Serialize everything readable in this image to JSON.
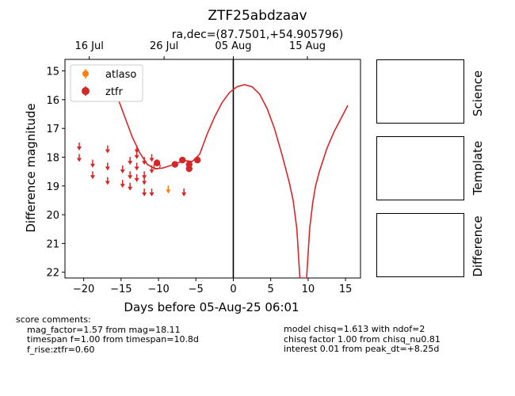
{
  "chart_data": {
    "type": "scatter",
    "title": "ZTF25abdzaav",
    "subtitle": "ra,dec=(87.7501,+54.905796)",
    "xlabel": "Days before 05-Aug-25 06:01",
    "ylabel": "Difference magnitude",
    "xlim": [
      -22.5,
      17
    ],
    "ylim": [
      22.2,
      14.6
    ],
    "y_inverted": true,
    "xticks": [
      -20,
      -15,
      -10,
      -5,
      0,
      5,
      10,
      15
    ],
    "yticks": [
      15,
      16,
      17,
      18,
      19,
      20,
      21,
      22
    ],
    "top_axis_ticks": [
      {
        "x": -19.25,
        "label": "16 Jul"
      },
      {
        "x": -9.25,
        "label": "26 Jul"
      },
      {
        "x": 0.0,
        "label": "05 Aug"
      },
      {
        "x": 9.9,
        "label": "15 Aug"
      }
    ],
    "vline_x": 0,
    "legend": {
      "location": "upper-left",
      "entries": [
        "atlaso",
        "ztfr"
      ]
    },
    "series": [
      {
        "name": "ztfr",
        "color": "#d62728",
        "detections": [
          {
            "x": -10.2,
            "y": 18.2,
            "err": 0.12
          },
          {
            "x": -7.8,
            "y": 18.25,
            "err": 0.1
          },
          {
            "x": -6.8,
            "y": 18.1,
            "err": 0.1
          },
          {
            "x": -5.9,
            "y": 18.4,
            "err": 0.12
          },
          {
            "x": -5.9,
            "y": 18.25,
            "err": 0.1
          },
          {
            "x": -4.8,
            "y": 18.1,
            "err": 0.08
          }
        ],
        "open_detection": {
          "x": -10.2,
          "y": 18.3
        },
        "upper_limits": [
          {
            "x": -20.6,
            "y": 17.6
          },
          {
            "x": -20.6,
            "y": 18.0
          },
          {
            "x": -18.8,
            "y": 18.2
          },
          {
            "x": -18.8,
            "y": 18.6
          },
          {
            "x": -16.8,
            "y": 17.7
          },
          {
            "x": -16.8,
            "y": 18.3
          },
          {
            "x": -16.8,
            "y": 18.8
          },
          {
            "x": -14.8,
            "y": 18.4
          },
          {
            "x": -14.8,
            "y": 18.9
          },
          {
            "x": -13.8,
            "y": 18.1
          },
          {
            "x": -13.8,
            "y": 18.6
          },
          {
            "x": -13.8,
            "y": 19.0
          },
          {
            "x": -12.9,
            "y": 17.7
          },
          {
            "x": -12.9,
            "y": 17.9
          },
          {
            "x": -12.9,
            "y": 18.3
          },
          {
            "x": -12.9,
            "y": 18.7
          },
          {
            "x": -11.9,
            "y": 18.1
          },
          {
            "x": -11.9,
            "y": 18.6
          },
          {
            "x": -11.9,
            "y": 18.8
          },
          {
            "x": -11.9,
            "y": 19.2
          },
          {
            "x": -10.9,
            "y": 18.0
          },
          {
            "x": -10.9,
            "y": 18.4
          },
          {
            "x": -10.9,
            "y": 19.2
          },
          {
            "x": -6.6,
            "y": 19.2
          }
        ]
      },
      {
        "name": "atlaso",
        "color": "#ff7f0e",
        "detections": [],
        "upper_limits": [
          {
            "x": -8.7,
            "y": 19.1
          }
        ]
      }
    ],
    "model_curve": {
      "color": "#d62728",
      "x": [
        -19.5,
        -18.5,
        -17.5,
        -16.5,
        -15.5,
        -14.5,
        -13.5,
        -12.5,
        -11.5,
        -10.5,
        -9.5,
        -8.5,
        -7.5,
        -6.5,
        -5.5,
        -4.5,
        -3.5,
        -2.5,
        -1.5,
        -0.5,
        0.5,
        1.5,
        2.5,
        3.5,
        4.5,
        5.5,
        6.5,
        7.5,
        8.0,
        8.5,
        8.9,
        9.4,
        9.8,
        10.2,
        10.6,
        11.0,
        11.5,
        12.0,
        12.5,
        13.0,
        13.5,
        14.0,
        14.5,
        15.0,
        15.3
      ],
      "y": [
        14.85,
        14.8,
        14.95,
        15.3,
        15.9,
        16.6,
        17.3,
        17.85,
        18.25,
        18.4,
        18.38,
        18.3,
        18.2,
        18.12,
        18.15,
        17.9,
        17.2,
        16.6,
        16.1,
        15.75,
        15.55,
        15.48,
        15.55,
        15.8,
        16.3,
        17.0,
        17.9,
        18.9,
        19.5,
        20.5,
        22.2,
        22.2,
        22.2,
        20.5,
        19.6,
        19.0,
        18.5,
        18.1,
        17.7,
        17.4,
        17.1,
        16.85,
        16.6,
        16.35,
        16.2
      ]
    }
  },
  "panels": [
    {
      "label": "Science"
    },
    {
      "label": "Template"
    },
    {
      "label": "Difference"
    }
  ],
  "comments": {
    "heading": "score comments:",
    "left": [
      "mag_factor=1.57 from mag=18.11",
      "timespan f=1.00 from timespan=10.8d",
      "f_rise:ztfr=0.60"
    ],
    "right": [
      "model chisq=1.613 with ndof=2",
      "chisq factor 1.00 from chisq_nu0.81",
      "interest 0.01 from peak_dt=+8.25d"
    ]
  }
}
